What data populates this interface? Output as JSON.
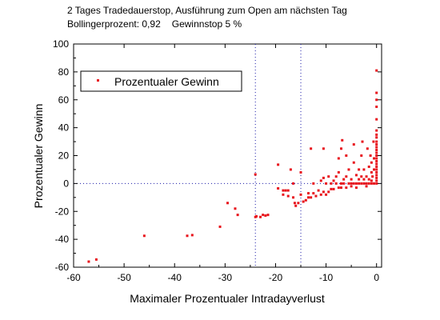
{
  "header": {
    "line1": "2 Tages Tradedauerstop, Ausführung zum Open am nächsten Tag",
    "bollinger": "Bollingerprozent: 0,92",
    "gewinnstop": "Gewinnstop 5 %"
  },
  "colors": {
    "points": "#e8141c",
    "reference_lines": "#1a1aa8",
    "axes": "#000000"
  },
  "chart_data": {
    "type": "scatter",
    "title": "2 Tages Tradedauerstop, Ausführung zum Open am nächsten Tag",
    "subtitle": "Bollingerprozent: 0,92      Gewinnstop 5 %",
    "xlabel": "Maximaler Prozentualer Intradayverlust",
    "ylabel": "Prozentualer Gewinn",
    "xlim": [
      -60,
      1
    ],
    "ylim": [
      -60,
      100
    ],
    "xticks": [
      -60,
      -50,
      -40,
      -30,
      -20,
      -10,
      0
    ],
    "yticks": [
      -60,
      -40,
      -20,
      0,
      20,
      40,
      60,
      80,
      100
    ],
    "grid": false,
    "legend_position": "top-left",
    "reference_lines": {
      "vertical": [
        -24,
        -15
      ],
      "horizontal": [
        0
      ],
      "style": "dotted"
    },
    "series": [
      {
        "name": "Prozentualer Gewinn",
        "points": [
          [
            -57,
            -56
          ],
          [
            -55.5,
            -54.5
          ],
          [
            -46,
            -37.5
          ],
          [
            -37.5,
            -37.5
          ],
          [
            -36.5,
            -37
          ],
          [
            -31,
            -31
          ],
          [
            -29.5,
            -14
          ],
          [
            -28,
            -18
          ],
          [
            -27.5,
            -22.5
          ],
          [
            -24,
            6.5
          ],
          [
            -24,
            -24
          ],
          [
            -23.8,
            -23.5
          ],
          [
            -23,
            -24
          ],
          [
            -22.5,
            -22.5
          ],
          [
            -22,
            -23
          ],
          [
            -21.5,
            -22.5
          ],
          [
            -19.5,
            13.5
          ],
          [
            -19.5,
            -3.5
          ],
          [
            -18.5,
            -8
          ],
          [
            -18.5,
            -5
          ],
          [
            -18,
            -5
          ],
          [
            -17.5,
            -5
          ],
          [
            -17.5,
            -9
          ],
          [
            -17,
            10
          ],
          [
            -16.5,
            0
          ],
          [
            -16.5,
            -10
          ],
          [
            -16.2,
            -14
          ],
          [
            -16,
            -16
          ],
          [
            -15.5,
            -14
          ],
          [
            -15,
            8
          ],
          [
            -15,
            -8
          ],
          [
            -14.5,
            -13
          ],
          [
            -14,
            -12
          ],
          [
            -13.5,
            -7
          ],
          [
            -13.5,
            -10
          ],
          [
            -13,
            25
          ],
          [
            -13,
            -10
          ],
          [
            -12.5,
            0
          ],
          [
            -12.5,
            -7
          ],
          [
            -12,
            -9
          ],
          [
            -11.5,
            -5
          ],
          [
            -11,
            2
          ],
          [
            -11,
            -8
          ],
          [
            -10.5,
            4
          ],
          [
            -10.5,
            -6
          ],
          [
            -10.5,
            25
          ],
          [
            -10,
            0
          ],
          [
            -10,
            -8
          ],
          [
            -9.5,
            -6
          ],
          [
            -9.5,
            5
          ],
          [
            -9,
            0
          ],
          [
            -9,
            -4
          ],
          [
            -8.5,
            2
          ],
          [
            -8.5,
            -4
          ],
          [
            -8,
            0
          ],
          [
            -8,
            5
          ],
          [
            -7.5,
            -3
          ],
          [
            -7.5,
            8
          ],
          [
            -7.5,
            18
          ],
          [
            -7,
            0
          ],
          [
            -7,
            -3
          ],
          [
            -7,
            25
          ],
          [
            -6.8,
            31
          ],
          [
            -6.5,
            0
          ],
          [
            -6.5,
            3
          ],
          [
            -6,
            5
          ],
          [
            -6,
            20
          ],
          [
            -6,
            -3
          ],
          [
            -5.5,
            0
          ],
          [
            -5.5,
            10
          ],
          [
            -5,
            0
          ],
          [
            -5,
            3
          ],
          [
            -5,
            -2
          ],
          [
            -4.5,
            15
          ],
          [
            -4.5,
            28
          ],
          [
            -4.5,
            0
          ],
          [
            -4,
            6
          ],
          [
            -4,
            0
          ],
          [
            -4,
            -3
          ],
          [
            -3.5,
            10
          ],
          [
            -3.5,
            3
          ],
          [
            -3.5,
            0
          ],
          [
            -3,
            20
          ],
          [
            -3,
            0
          ],
          [
            -3,
            5
          ],
          [
            -2.8,
            30
          ],
          [
            -2.5,
            10
          ],
          [
            -2.5,
            3
          ],
          [
            -2.5,
            0
          ],
          [
            -2,
            0
          ],
          [
            -2,
            5
          ],
          [
            -2,
            -2
          ],
          [
            -1.8,
            25
          ],
          [
            -1.5,
            12
          ],
          [
            -1.5,
            3
          ],
          [
            -1.5,
            0
          ],
          [
            -1.2,
            20
          ],
          [
            -1,
            8
          ],
          [
            -1,
            2
          ],
          [
            -1,
            0
          ],
          [
            -1,
            15
          ],
          [
            -0.8,
            5
          ],
          [
            -0.6,
            30
          ],
          [
            -0.5,
            0
          ],
          [
            -0.5,
            10
          ],
          [
            -0.5,
            18
          ],
          [
            0,
            81
          ],
          [
            0,
            65
          ],
          [
            0,
            60
          ],
          [
            0,
            55
          ],
          [
            0,
            46
          ],
          [
            0,
            38
          ],
          [
            0,
            35
          ],
          [
            0,
            33
          ],
          [
            0,
            30
          ],
          [
            0,
            28
          ],
          [
            0,
            26
          ],
          [
            0,
            24
          ],
          [
            0,
            22
          ],
          [
            0,
            20
          ],
          [
            0,
            18
          ],
          [
            0,
            16
          ],
          [
            0,
            14
          ],
          [
            0,
            12
          ],
          [
            0,
            10
          ],
          [
            0,
            8
          ],
          [
            0,
            6
          ],
          [
            0,
            4
          ],
          [
            0,
            2
          ],
          [
            0,
            0
          ]
        ]
      }
    ]
  }
}
